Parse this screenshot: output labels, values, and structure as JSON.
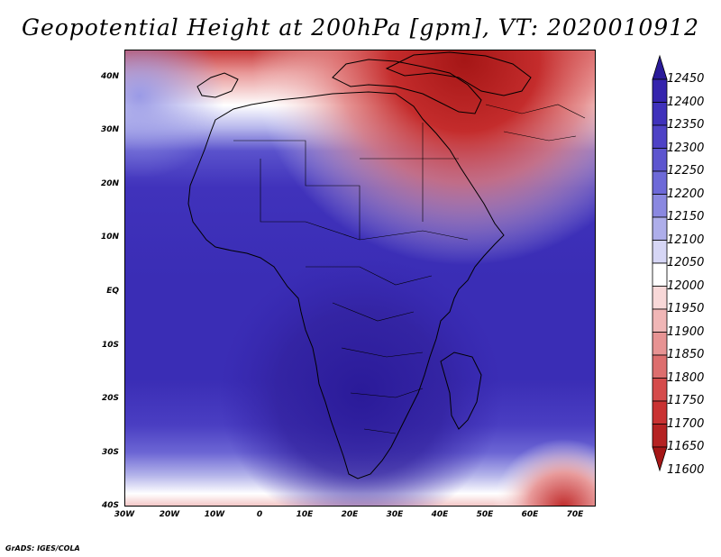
{
  "title": "Geopotential Height at 200hPa [gpm], VT: 2020010912",
  "footer": "GrADS: IGES/COLA",
  "lat_labels": [
    "40N",
    "30N",
    "20N",
    "10N",
    "EQ",
    "10S",
    "20S",
    "30S",
    "40S"
  ],
  "lon_labels": [
    "30W",
    "20W",
    "10W",
    "0",
    "10E",
    "20E",
    "30E",
    "40E",
    "50E",
    "60E",
    "70E"
  ],
  "colorbar": {
    "labels": [
      "12450",
      "12400",
      "12350",
      "12300",
      "12250",
      "12200",
      "12150",
      "12100",
      "12050",
      "12000",
      "11950",
      "11900",
      "11850",
      "11800",
      "11750",
      "11700",
      "11650",
      "11600"
    ],
    "colors": [
      "#2a1a99",
      "#3524ad",
      "#3f31bb",
      "#4e42c6",
      "#5d55cf",
      "#6d69d8",
      "#8a88e0",
      "#aeaeea",
      "#d6d6f5",
      "#ffffff",
      "#f8d8d8",
      "#f0b6b6",
      "#e79393",
      "#dd6e6e",
      "#d54b4b",
      "#c93232",
      "#b52222",
      "#a51616"
    ]
  },
  "map": {
    "region": "Africa and surroundings",
    "lon_range": [
      -30,
      75
    ],
    "lat_range": [
      -40,
      45
    ]
  }
}
